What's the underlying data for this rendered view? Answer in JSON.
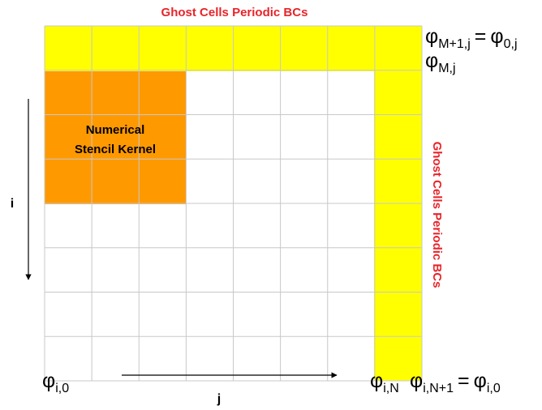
{
  "top_title": "Ghost Cells Periodic BCs",
  "side_title": "Ghost Cells Periodic BCs",
  "kernel_label": [
    "Numerical",
    "Stencil Kernel"
  ],
  "axis_i": "i",
  "axis_j": "j",
  "boundary_labels": {
    "top_ghost": {
      "lhs": {
        "symbol": "φ",
        "sub": "M+1,j"
      },
      "eq": "=",
      "rhs": {
        "symbol": "φ",
        "sub": "0,j"
      }
    },
    "top_last": {
      "symbol": "φ",
      "sub": "M,j"
    },
    "bottom_first": {
      "symbol": "φ",
      "sub": "i,0"
    },
    "bottom_last": {
      "symbol": "φ",
      "sub": "i,N"
    },
    "right_ghost": {
      "lhs": {
        "symbol": "φ",
        "sub": "i,N+1"
      },
      "eq": "=",
      "rhs": {
        "symbol": "φ",
        "sub": "i,0"
      }
    }
  }
}
